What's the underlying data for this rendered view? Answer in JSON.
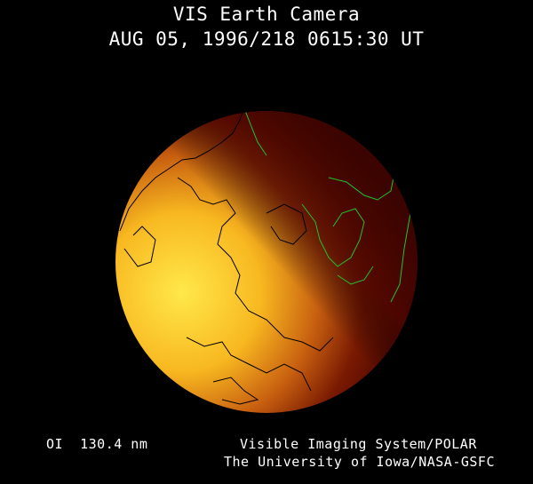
{
  "header": {
    "title": "VIS Earth Camera",
    "timestamp": "AUG 05, 1996/218 0615:30 UT"
  },
  "footer": {
    "filter": "OI  130.4 nm",
    "credit_line1": "Visible Imaging System/POLAR",
    "credit_line2": "The University of Iowa/NASA-GSFC"
  },
  "colors": {
    "background": "#000000",
    "dayside": "#ffd21e",
    "nightside": "#5a0a00",
    "coastline_day": "#000000",
    "coastline_night": "#22c422"
  }
}
